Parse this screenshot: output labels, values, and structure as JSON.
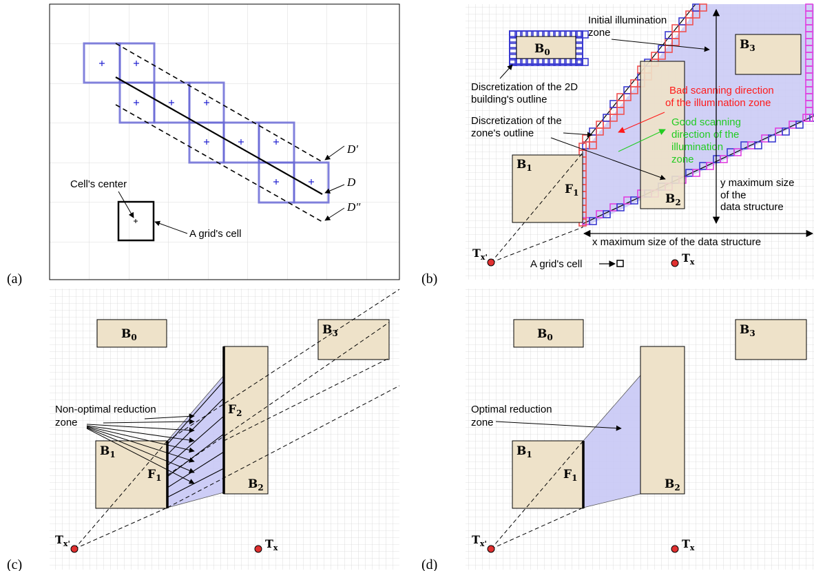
{
  "panels": {
    "a": {
      "label": "(a)",
      "line_d": "D",
      "line_d_prime": "D′",
      "line_d_double": "D″",
      "cell_center": "Cell's center",
      "grid_cell": "A grid's cell"
    },
    "b": {
      "label": "(b)",
      "b0": "B",
      "b0_sub": "0",
      "b1": "B",
      "b1_sub": "1",
      "b2": "B",
      "b2_sub": "2",
      "b3": "B",
      "b3_sub": "3",
      "f1": "F",
      "f1_sub": "1",
      "initial_zone_1": "Initial illumination",
      "initial_zone_2": "zone",
      "disc_building_1": "Discretization of the 2D",
      "disc_building_2": "building's outline",
      "disc_zone_1": "Discretization of the",
      "disc_zone_2": "zone's outline",
      "bad_scan_1": "Bad scanning direction",
      "bad_scan_2": "of the illumination zone",
      "good_scan_1": "Good scanning",
      "good_scan_2": "direction of the",
      "good_scan_3": "illumination",
      "good_scan_4": "zone",
      "y_max_1": "y maximum size",
      "y_max_2": "of the",
      "y_max_3": "data structure",
      "x_max": "x maximum size of the data structure",
      "grid_cell": "A grid's cell",
      "tx": "T",
      "tx_sub": "x",
      "txp": "T",
      "txp_sub": "x'"
    },
    "c": {
      "label": "(c)",
      "b0": "B",
      "b0_sub": "0",
      "b1": "B",
      "b1_sub": "1",
      "b2": "B",
      "b2_sub": "2",
      "b3": "B",
      "b3_sub": "3",
      "f1": "F",
      "f1_sub": "1",
      "f2": "F",
      "f2_sub": "2",
      "non_optimal_1": "Non-optimal reduction",
      "non_optimal_2": "zone",
      "tx": "T",
      "tx_sub": "x",
      "txp": "T",
      "txp_sub": "x'"
    },
    "d": {
      "label": "(d)",
      "b0": "B",
      "b0_sub": "0",
      "b1": "B",
      "b1_sub": "1",
      "b2": "B",
      "b2_sub": "2",
      "b3": "B",
      "b3_sub": "3",
      "f1": "F",
      "f1_sub": "1",
      "optimal_1": "Optimal reduction",
      "optimal_2": "zone",
      "tx": "T",
      "tx_sub": "x",
      "txp": "T",
      "txp_sub": "x'"
    }
  },
  "colors": {
    "building_fill": "#eee2c9",
    "zone_fill": "#c8c8f5",
    "grid_line": "#d6d6d6",
    "cell_blue": "#6b6bd6",
    "bad_red": "#ff1a1a",
    "good_green": "#22cc22",
    "outline_red": "#f05050",
    "outline_magenta": "#e040e0",
    "outline_blue": "#3a3ad0",
    "transmitter_red": "#e03030"
  }
}
